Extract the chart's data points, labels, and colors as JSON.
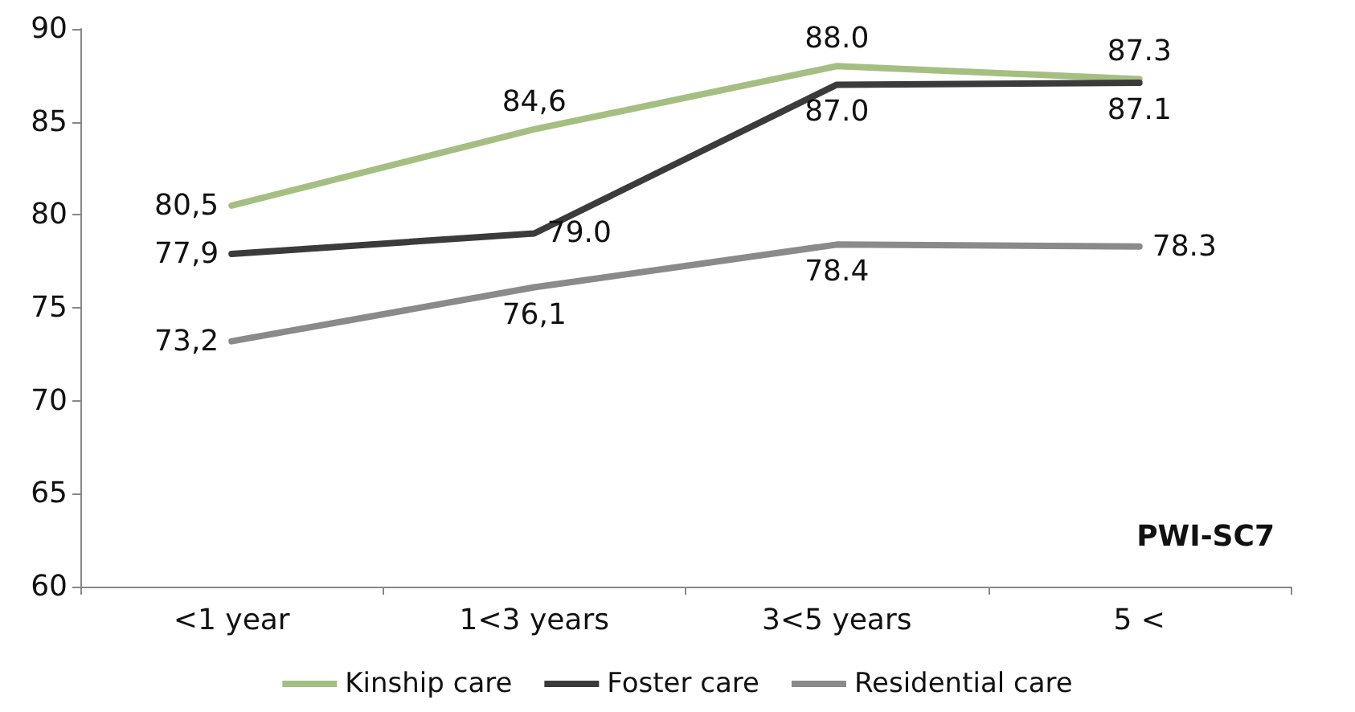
{
  "chart_data": {
    "type": "line",
    "categories": [
      "<1 year",
      "1<3 years",
      "3<5 years",
      "5 <"
    ],
    "series": [
      {
        "name": "Kinship care",
        "color": "#a5bf82",
        "values": [
          80.5,
          84.6,
          88.0,
          87.3
        ],
        "value_labels": [
          "80,5",
          "84,6",
          "88.0",
          "87.3"
        ]
      },
      {
        "name": "Foster care",
        "color": "#3b3b3b",
        "values": [
          77.9,
          79.0,
          87.0,
          87.1
        ],
        "value_labels": [
          "77,9",
          "79.0",
          "87.0",
          "87.1"
        ]
      },
      {
        "name": "Residential care",
        "color": "#8a8a8a",
        "values": [
          73.2,
          76.1,
          78.4,
          78.3
        ],
        "value_labels": [
          "73,2",
          "76,1",
          "78.4",
          "78.3"
        ]
      }
    ],
    "ylim": [
      60,
      90
    ],
    "yticks": [
      60,
      65,
      70,
      75,
      80,
      85,
      90
    ],
    "grid": false,
    "legend": "bottom",
    "marker": "none",
    "line_style": "solid",
    "annotations": [
      "PWI-SC7"
    ]
  }
}
